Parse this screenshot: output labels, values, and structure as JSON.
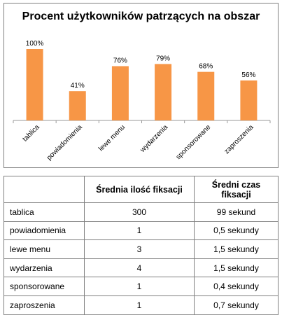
{
  "chart_data": {
    "type": "bar",
    "title": "Procent użytkowników patrzących na obszar",
    "categories": [
      "tablica",
      "powiadomienia",
      "lewe menu",
      "wydarzenia",
      "sponsorowane",
      "zaproszenia"
    ],
    "values": [
      100,
      41,
      76,
      79,
      68,
      56
    ],
    "value_labels": [
      "100%",
      "41%",
      "76%",
      "79%",
      "68%",
      "56%"
    ],
    "ylim": [
      0,
      100
    ],
    "bar_color": "#f79646",
    "grid": false,
    "legend": "none"
  },
  "table": {
    "headers": [
      "",
      "Średnia ilość fiksacji",
      "Średni czas fiksacji"
    ],
    "rows": [
      [
        "tablica",
        "300",
        "99 sekund"
      ],
      [
        "powiadomienia",
        "1",
        "0,5 sekundy"
      ],
      [
        "lewe menu",
        "3",
        "1,5 sekundy"
      ],
      [
        "wydarzenia",
        "4",
        "1,5 sekundy"
      ],
      [
        "sponsorowane",
        "1",
        "0,4 sekundy"
      ],
      [
        "zaproszenia",
        "1",
        "0,7 sekundy"
      ]
    ]
  }
}
